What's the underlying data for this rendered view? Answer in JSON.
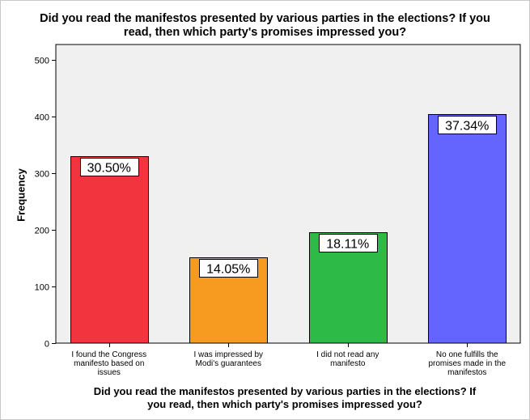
{
  "chart_data": {
    "type": "bar",
    "title_lines": [
      "Did you read the manifestos presented by various parties in the elections? If you",
      "read, then which party's promises impressed you?"
    ],
    "xlabel_lines": [
      "Did you read the manifestos presented by various parties in the elections? If",
      "you read, then which party's promises impressed you?"
    ],
    "ylabel": "Frequency",
    "ylim": [
      0,
      500
    ],
    "yticks": [
      "0",
      "100",
      "200",
      "300",
      "400",
      "500"
    ],
    "grid": false,
    "categories": [
      [
        "I found the Congress",
        "manifesto based on",
        "issues"
      ],
      [
        "I was impressed by",
        "Modi's guarantees"
      ],
      [
        "I did not read any",
        "manifesto"
      ],
      [
        "No one fulfills the",
        "promises made in the",
        "manifestos"
      ]
    ],
    "values": [
      330,
      152,
      196,
      404
    ],
    "data_labels": [
      "30.50%",
      "14.05%",
      "18.11%",
      "37.34%"
    ],
    "colors": [
      "#f2343e",
      "#f79a20",
      "#2eba46",
      "#6464ff"
    ],
    "plot_background": "#f0f0f0"
  }
}
